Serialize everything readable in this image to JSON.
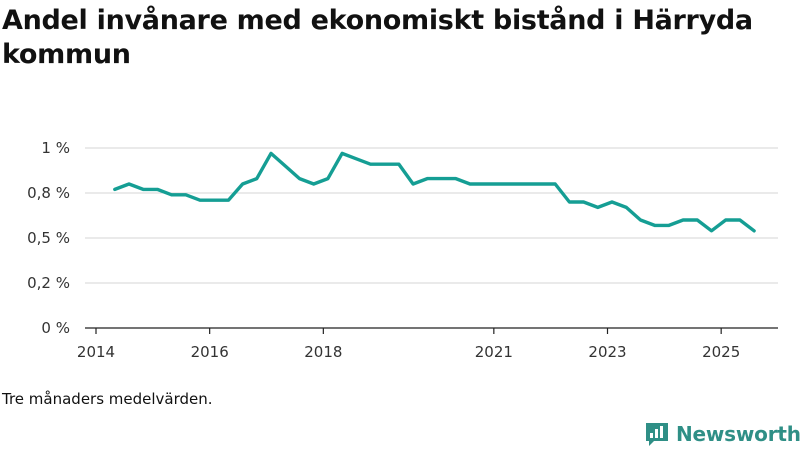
{
  "chart_data": {
    "type": "line",
    "title": "Andel invånare med ekonomiskt bistånd i Härryda kommun",
    "xlabel": "",
    "ylabel": "",
    "ylim": [
      0,
      1.0
    ],
    "yticks": [
      {
        "value": 0,
        "label": "0 %"
      },
      {
        "value": 0.25,
        "label": "0,2 %"
      },
      {
        "value": 0.5,
        "label": "0,5 %"
      },
      {
        "value": 0.75,
        "label": "0,8 %"
      },
      {
        "value": 1.0,
        "label": "1 %"
      }
    ],
    "xlim": [
      2014.0,
      2026.0
    ],
    "xticks": [
      {
        "value": 2014.0,
        "label": "2014"
      },
      {
        "value": 2016.0,
        "label": "2016"
      },
      {
        "value": 2018.0,
        "label": "2018"
      },
      {
        "value": 2021.0,
        "label": "2021"
      },
      {
        "value": 2023.0,
        "label": "2023"
      },
      {
        "value": 2025.0,
        "label": "2025"
      }
    ],
    "grid": true,
    "series": [
      {
        "name": "Andel invånare med ekonomiskt bistånd",
        "color": "#159e94",
        "x": [
          2014.33,
          2014.58,
          2014.83,
          2015.08,
          2015.33,
          2015.58,
          2015.83,
          2016.08,
          2016.33,
          2016.58,
          2016.83,
          2017.08,
          2017.33,
          2017.58,
          2017.83,
          2018.08,
          2018.33,
          2018.58,
          2018.83,
          2019.08,
          2019.33,
          2019.58,
          2019.83,
          2020.08,
          2020.33,
          2020.58,
          2020.83,
          2021.08,
          2021.33,
          2021.58,
          2021.83,
          2022.08,
          2022.33,
          2022.58,
          2022.83,
          2023.08,
          2023.33,
          2023.58,
          2023.83,
          2024.08,
          2024.33,
          2024.58,
          2024.83,
          2025.08,
          2025.33,
          2025.58
        ],
        "y": [
          0.77,
          0.8,
          0.77,
          0.77,
          0.74,
          0.74,
          0.71,
          0.71,
          0.71,
          0.8,
          0.83,
          0.97,
          0.9,
          0.83,
          0.8,
          0.83,
          0.97,
          0.94,
          0.91,
          0.91,
          0.91,
          0.8,
          0.83,
          0.83,
          0.83,
          0.8,
          0.8,
          0.8,
          0.8,
          0.8,
          0.8,
          0.8,
          0.7,
          0.7,
          0.67,
          0.7,
          0.67,
          0.6,
          0.57,
          0.57,
          0.6,
          0.6,
          0.54,
          0.6,
          0.6,
          0.54
        ]
      }
    ]
  },
  "caption": "Tre månaders medelvärden.",
  "brand": {
    "name": "Newsworthy",
    "color": "#2f8f86"
  }
}
